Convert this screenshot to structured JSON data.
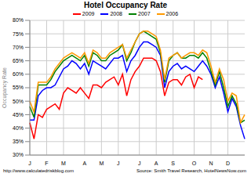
{
  "chart_data": {
    "type": "line",
    "title": "Hotel Occupancy Rate",
    "y_label": "Occupancy Rate",
    "annotations": [
      "Source: Smith Travel Research, HotelNewsNow.com",
      "http://www.calculatedriskblog.com"
    ],
    "categories": [
      "J",
      null,
      null,
      null,
      "F",
      null,
      null,
      null,
      "M",
      null,
      null,
      null,
      null,
      "A",
      null,
      null,
      null,
      "M",
      null,
      null,
      null,
      "J",
      null,
      null,
      null,
      null,
      "J",
      null,
      null,
      null,
      "A",
      null,
      null,
      null,
      "S",
      null,
      null,
      null,
      null,
      "O",
      null,
      null,
      null,
      "N",
      null,
      null,
      null,
      "D",
      null,
      null,
      null,
      null
    ],
    "series": [
      {
        "name": "2009",
        "color": "#ff0000",
        "values": [
          42,
          36,
          45,
          44,
          47,
          48,
          49,
          47,
          53,
          55,
          54,
          53,
          55,
          53,
          51,
          56,
          56,
          55,
          57,
          58,
          59,
          56,
          60,
          52,
          58,
          61,
          63,
          66,
          66,
          66,
          65,
          61,
          52,
          57,
          58,
          58,
          56,
          59,
          60,
          55,
          59,
          58,
          null,
          null,
          null,
          null,
          null,
          null,
          null,
          null,
          null,
          null
        ]
      },
      {
        "name": "2008",
        "color": "#0000ff",
        "values": [
          43,
          43,
          52,
          54,
          55,
          55,
          56,
          59,
          62,
          63,
          65,
          64,
          62,
          64,
          60,
          65,
          64,
          63,
          62,
          64,
          66,
          66,
          67,
          61,
          65,
          67,
          70,
          72,
          72,
          71,
          70,
          67,
          55,
          61,
          63,
          64,
          62,
          63,
          62,
          61,
          63,
          65,
          63,
          60,
          55,
          59,
          53,
          46,
          51,
          48,
          41,
          36
        ]
      },
      {
        "name": "2007",
        "color": "#008000",
        "values": [
          48,
          44,
          56,
          56,
          56,
          58,
          61,
          63,
          65,
          66,
          67,
          66,
          65,
          67,
          63,
          68,
          67,
          65,
          65,
          67,
          68,
          69,
          71,
          65,
          68,
          72,
          75,
          76,
          75,
          74,
          73,
          68,
          57,
          65,
          67,
          68,
          66,
          66,
          67,
          67,
          66,
          68,
          66,
          61,
          56,
          61,
          55,
          48,
          52,
          49,
          42,
          43
        ]
      },
      {
        "name": "2006",
        "color": "#ff9900",
        "values": [
          50,
          46,
          57,
          57,
          57,
          59,
          62,
          64,
          66,
          67,
          68,
          67,
          66,
          68,
          64,
          69,
          68,
          66,
          66,
          68,
          69,
          70,
          71,
          66,
          69,
          72,
          75,
          76,
          76,
          75,
          74,
          69,
          58,
          66,
          67,
          68,
          66,
          67,
          68,
          68,
          67,
          69,
          68,
          63,
          57,
          62,
          58,
          50,
          53,
          52,
          42,
          45
        ]
      }
    ],
    "ylim": [
      30,
      80
    ],
    "yticks": [
      {
        "value": 30,
        "label": "30%"
      },
      {
        "value": 35,
        "label": "35%"
      },
      {
        "value": 40,
        "label": "40%"
      },
      {
        "value": 45,
        "label": "45%"
      },
      {
        "value": 50,
        "label": "50%"
      },
      {
        "value": 55,
        "label": "55%"
      },
      {
        "value": 60,
        "label": "60%"
      },
      {
        "value": 65,
        "label": "65%"
      },
      {
        "value": 70,
        "label": "70%"
      },
      {
        "value": 75,
        "label": "75%"
      },
      {
        "value": 80,
        "label": "80%"
      }
    ],
    "grid": true,
    "legend": "top"
  }
}
